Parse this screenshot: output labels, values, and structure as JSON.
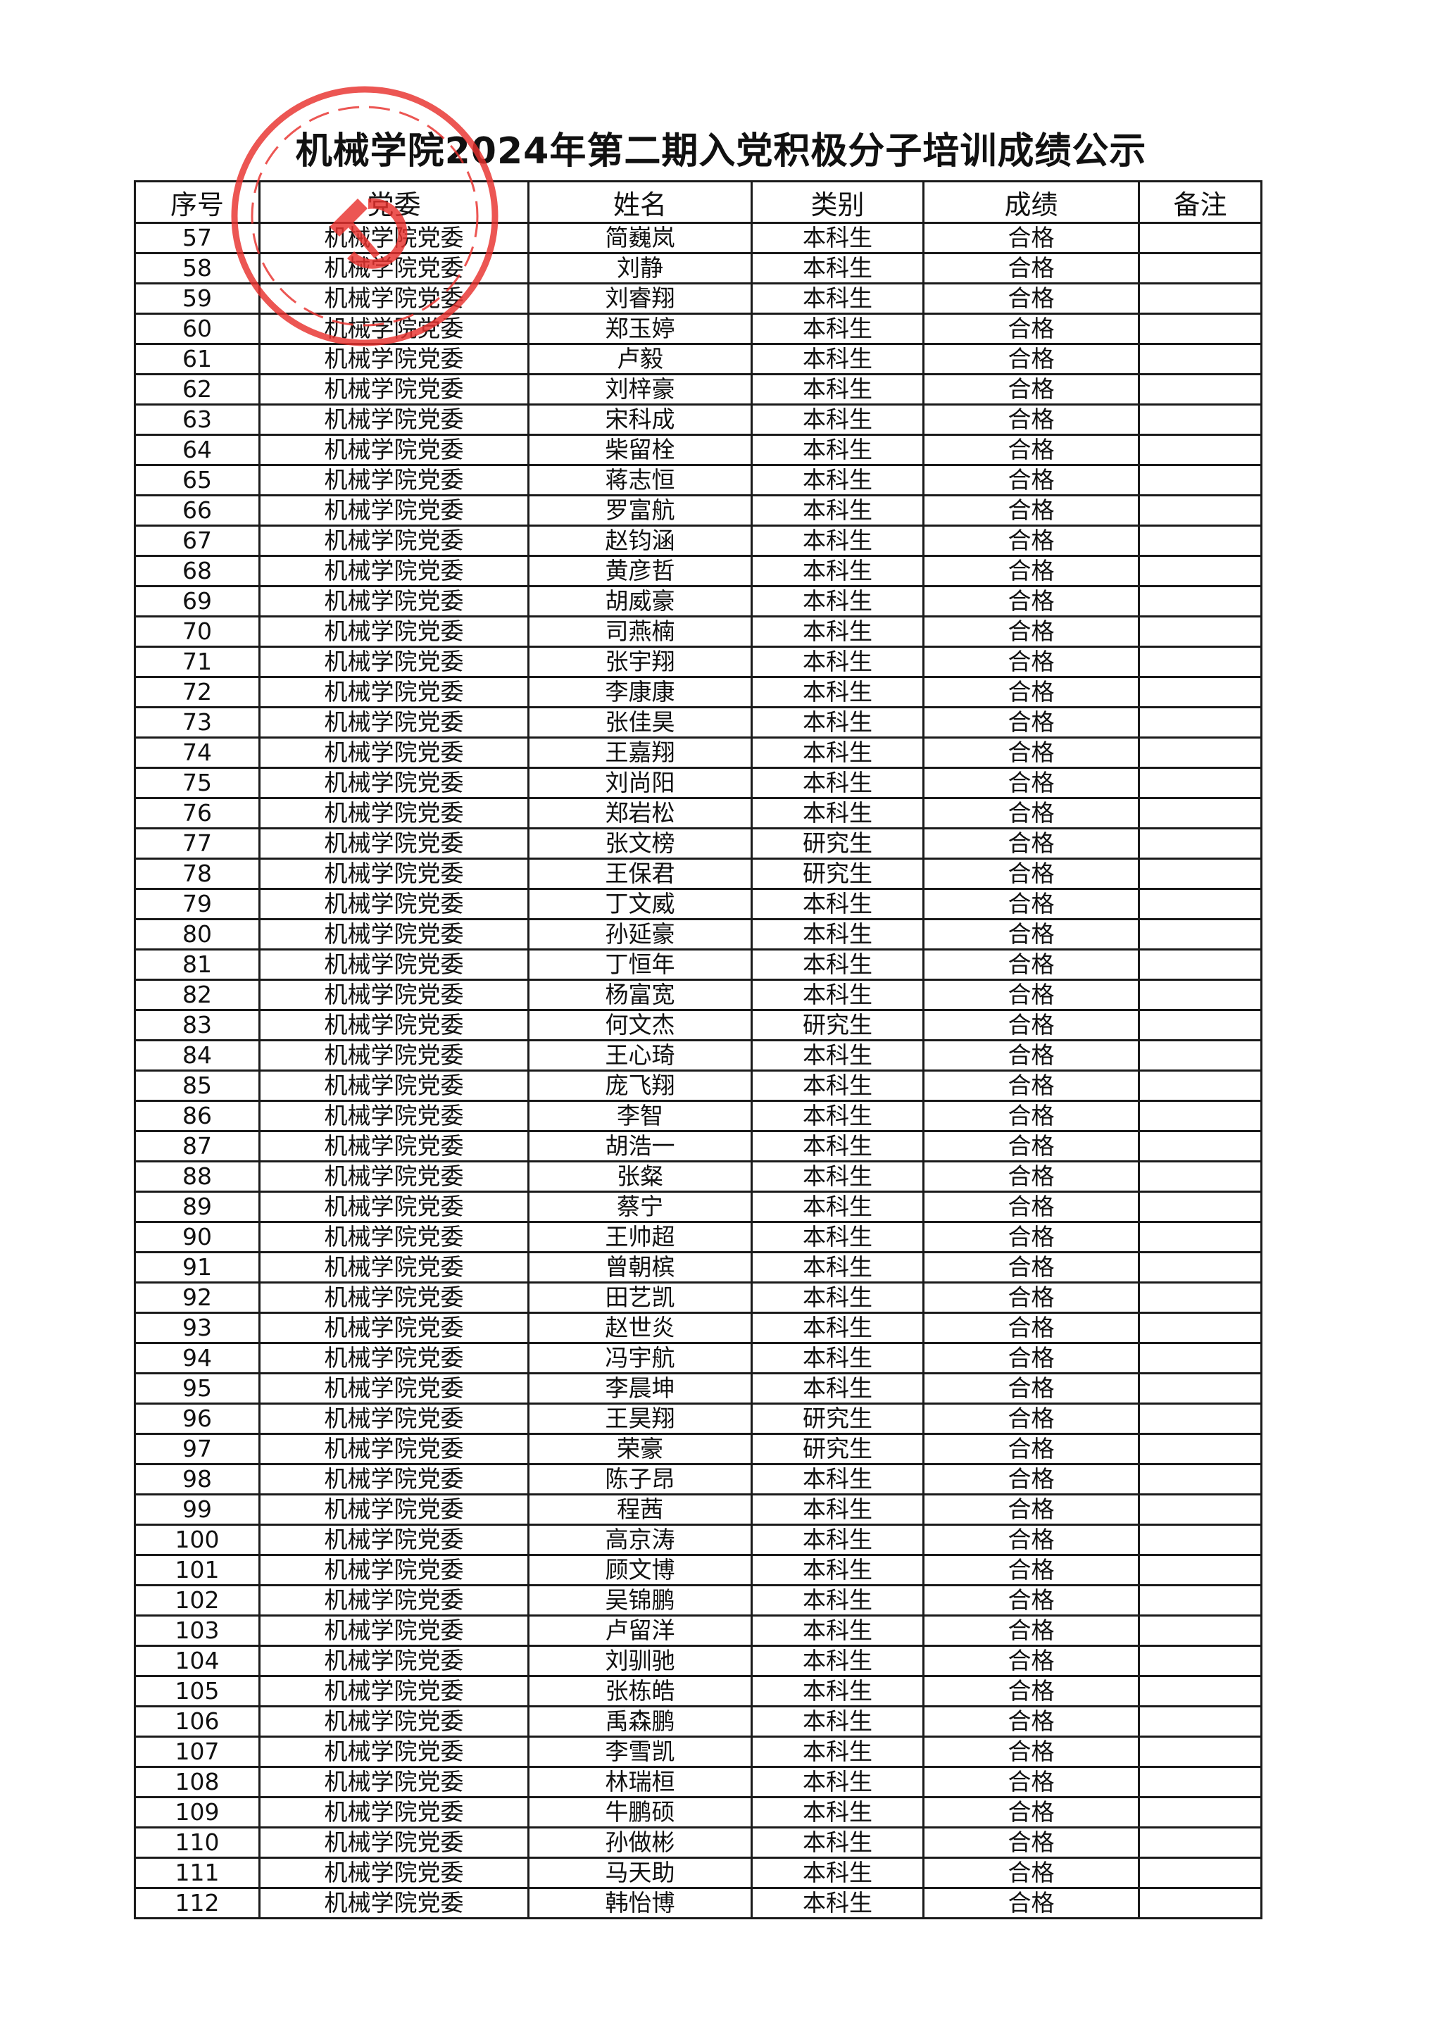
{
  "title": "机械学院2024年第二期入党积极分子培训成绩公示",
  "stamp": {
    "color": "#e8312e",
    "icon": "party-emblem-seal"
  },
  "table": {
    "headers": [
      "序号",
      "党委",
      "姓名",
      "类别",
      "成绩",
      "备注"
    ],
    "rows": [
      [
        "57",
        "机械学院党委",
        "简巍岚",
        "本科生",
        "合格",
        ""
      ],
      [
        "58",
        "机械学院党委",
        "刘静",
        "本科生",
        "合格",
        ""
      ],
      [
        "59",
        "机械学院党委",
        "刘睿翔",
        "本科生",
        "合格",
        ""
      ],
      [
        "60",
        "机械学院党委",
        "郑玉婷",
        "本科生",
        "合格",
        ""
      ],
      [
        "61",
        "机械学院党委",
        "卢毅",
        "本科生",
        "合格",
        ""
      ],
      [
        "62",
        "机械学院党委",
        "刘梓豪",
        "本科生",
        "合格",
        ""
      ],
      [
        "63",
        "机械学院党委",
        "宋科成",
        "本科生",
        "合格",
        ""
      ],
      [
        "64",
        "机械学院党委",
        "柴留栓",
        "本科生",
        "合格",
        ""
      ],
      [
        "65",
        "机械学院党委",
        "蒋志恒",
        "本科生",
        "合格",
        ""
      ],
      [
        "66",
        "机械学院党委",
        "罗富航",
        "本科生",
        "合格",
        ""
      ],
      [
        "67",
        "机械学院党委",
        "赵钧涵",
        "本科生",
        "合格",
        ""
      ],
      [
        "68",
        "机械学院党委",
        "黄彦哲",
        "本科生",
        "合格",
        ""
      ],
      [
        "69",
        "机械学院党委",
        "胡威豪",
        "本科生",
        "合格",
        ""
      ],
      [
        "70",
        "机械学院党委",
        "司燕楠",
        "本科生",
        "合格",
        ""
      ],
      [
        "71",
        "机械学院党委",
        "张宇翔",
        "本科生",
        "合格",
        ""
      ],
      [
        "72",
        "机械学院党委",
        "李康康",
        "本科生",
        "合格",
        ""
      ],
      [
        "73",
        "机械学院党委",
        "张佳昊",
        "本科生",
        "合格",
        ""
      ],
      [
        "74",
        "机械学院党委",
        "王嘉翔",
        "本科生",
        "合格",
        ""
      ],
      [
        "75",
        "机械学院党委",
        "刘尚阳",
        "本科生",
        "合格",
        ""
      ],
      [
        "76",
        "机械学院党委",
        "郑岩松",
        "本科生",
        "合格",
        ""
      ],
      [
        "77",
        "机械学院党委",
        "张文榜",
        "研究生",
        "合格",
        ""
      ],
      [
        "78",
        "机械学院党委",
        "王保君",
        "研究生",
        "合格",
        ""
      ],
      [
        "79",
        "机械学院党委",
        "丁文威",
        "本科生",
        "合格",
        ""
      ],
      [
        "80",
        "机械学院党委",
        "孙延豪",
        "本科生",
        "合格",
        ""
      ],
      [
        "81",
        "机械学院党委",
        "丁恒年",
        "本科生",
        "合格",
        ""
      ],
      [
        "82",
        "机械学院党委",
        "杨富宽",
        "本科生",
        "合格",
        ""
      ],
      [
        "83",
        "机械学院党委",
        "何文杰",
        "研究生",
        "合格",
        ""
      ],
      [
        "84",
        "机械学院党委",
        "王心琦",
        "本科生",
        "合格",
        ""
      ],
      [
        "85",
        "机械学院党委",
        "庞飞翔",
        "本科生",
        "合格",
        ""
      ],
      [
        "86",
        "机械学院党委",
        "李智",
        "本科生",
        "合格",
        ""
      ],
      [
        "87",
        "机械学院党委",
        "胡浩一",
        "本科生",
        "合格",
        ""
      ],
      [
        "88",
        "机械学院党委",
        "张粲",
        "本科生",
        "合格",
        ""
      ],
      [
        "89",
        "机械学院党委",
        "蔡宁",
        "本科生",
        "合格",
        ""
      ],
      [
        "90",
        "机械学院党委",
        "王帅超",
        "本科生",
        "合格",
        ""
      ],
      [
        "91",
        "机械学院党委",
        "曾朝槟",
        "本科生",
        "合格",
        ""
      ],
      [
        "92",
        "机械学院党委",
        "田艺凯",
        "本科生",
        "合格",
        ""
      ],
      [
        "93",
        "机械学院党委",
        "赵世炎",
        "本科生",
        "合格",
        ""
      ],
      [
        "94",
        "机械学院党委",
        "冯宇航",
        "本科生",
        "合格",
        ""
      ],
      [
        "95",
        "机械学院党委",
        "李晨坤",
        "本科生",
        "合格",
        ""
      ],
      [
        "96",
        "机械学院党委",
        "王昊翔",
        "研究生",
        "合格",
        ""
      ],
      [
        "97",
        "机械学院党委",
        "荣豪",
        "研究生",
        "合格",
        ""
      ],
      [
        "98",
        "机械学院党委",
        "陈子昂",
        "本科生",
        "合格",
        ""
      ],
      [
        "99",
        "机械学院党委",
        "程茜",
        "本科生",
        "合格",
        ""
      ],
      [
        "100",
        "机械学院党委",
        "高京涛",
        "本科生",
        "合格",
        ""
      ],
      [
        "101",
        "机械学院党委",
        "顾文博",
        "本科生",
        "合格",
        ""
      ],
      [
        "102",
        "机械学院党委",
        "吴锦鹏",
        "本科生",
        "合格",
        ""
      ],
      [
        "103",
        "机械学院党委",
        "卢留洋",
        "本科生",
        "合格",
        ""
      ],
      [
        "104",
        "机械学院党委",
        "刘驯驰",
        "本科生",
        "合格",
        ""
      ],
      [
        "105",
        "机械学院党委",
        "张栋皓",
        "本科生",
        "合格",
        ""
      ],
      [
        "106",
        "机械学院党委",
        "禹森鹏",
        "本科生",
        "合格",
        ""
      ],
      [
        "107",
        "机械学院党委",
        "李雪凯",
        "本科生",
        "合格",
        ""
      ],
      [
        "108",
        "机械学院党委",
        "林瑞桓",
        "本科生",
        "合格",
        ""
      ],
      [
        "109",
        "机械学院党委",
        "牛鹏硕",
        "本科生",
        "合格",
        ""
      ],
      [
        "110",
        "机械学院党委",
        "孙做彬",
        "本科生",
        "合格",
        ""
      ],
      [
        "111",
        "机械学院党委",
        "马天助",
        "本科生",
        "合格",
        ""
      ],
      [
        "112",
        "机械学院党委",
        "韩怡博",
        "本科生",
        "合格",
        ""
      ]
    ]
  }
}
